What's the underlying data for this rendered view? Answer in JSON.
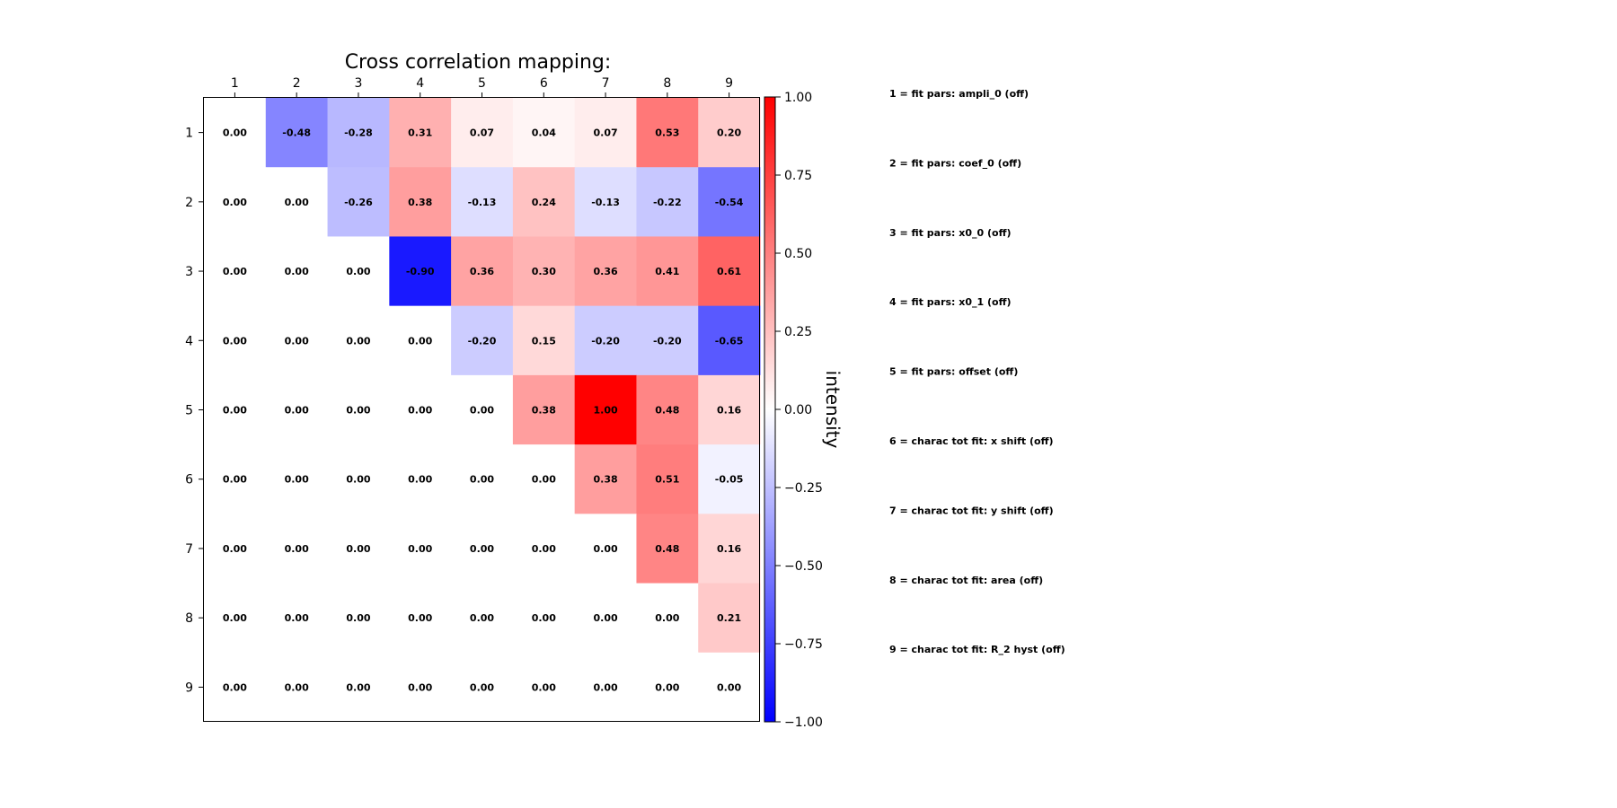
{
  "chart_data": {
    "type": "heatmap",
    "title": "Cross correlation mapping:",
    "x_ticks": [
      "1",
      "2",
      "3",
      "4",
      "5",
      "6",
      "7",
      "8",
      "9"
    ],
    "y_ticks": [
      "1",
      "2",
      "3",
      "4",
      "5",
      "6",
      "7",
      "8",
      "9"
    ],
    "matrix": [
      [
        0.0,
        -0.48,
        -0.28,
        0.31,
        0.07,
        0.04,
        0.07,
        0.53,
        0.2
      ],
      [
        0.0,
        0.0,
        -0.26,
        0.38,
        -0.13,
        0.24,
        -0.13,
        -0.22,
        -0.54
      ],
      [
        0.0,
        0.0,
        0.0,
        -0.9,
        0.36,
        0.3,
        0.36,
        0.41,
        0.61
      ],
      [
        0.0,
        0.0,
        0.0,
        0.0,
        -0.2,
        0.15,
        -0.2,
        -0.2,
        -0.65
      ],
      [
        0.0,
        0.0,
        0.0,
        0.0,
        0.0,
        0.38,
        1.0,
        0.48,
        0.16
      ],
      [
        0.0,
        0.0,
        0.0,
        0.0,
        0.0,
        0.0,
        0.38,
        0.51,
        -0.05
      ],
      [
        0.0,
        0.0,
        0.0,
        0.0,
        0.0,
        0.0,
        0.0,
        0.48,
        0.16
      ],
      [
        0.0,
        0.0,
        0.0,
        0.0,
        0.0,
        0.0,
        0.0,
        0.0,
        0.21
      ],
      [
        0.0,
        0.0,
        0.0,
        0.0,
        0.0,
        0.0,
        0.0,
        0.0,
        0.0
      ]
    ],
    "colorbar": {
      "label": "intensity",
      "range": [
        -1.0,
        1.0
      ],
      "colormap": "bwr",
      "low_color": "#0000ff",
      "mid_color": "#ffffff",
      "high_color": "#ff0000",
      "ticks": [
        1.0,
        0.75,
        0.5,
        0.25,
        0.0,
        -0.25,
        -0.5,
        -0.75,
        -1.0
      ],
      "tick_labels": [
        "1.00",
        "0.75",
        "0.50",
        "0.25",
        "0.00",
        "−0.25",
        "−0.50",
        "−0.75",
        "−1.00"
      ]
    },
    "legend": [
      "1 = fit pars: ampli_0 (off)",
      "2 = fit pars: coef_0 (off)",
      "3 = fit pars: x0_0 (off)",
      "4 = fit pars: x0_1 (off)",
      "5 = fit pars: offset (off)",
      "6 = charac tot fit: x shift (off)",
      "7 = charac tot fit: y shift (off)",
      "8 = charac tot fit: area (off)",
      "9 = charac tot fit: R_2 hyst (off)"
    ]
  }
}
